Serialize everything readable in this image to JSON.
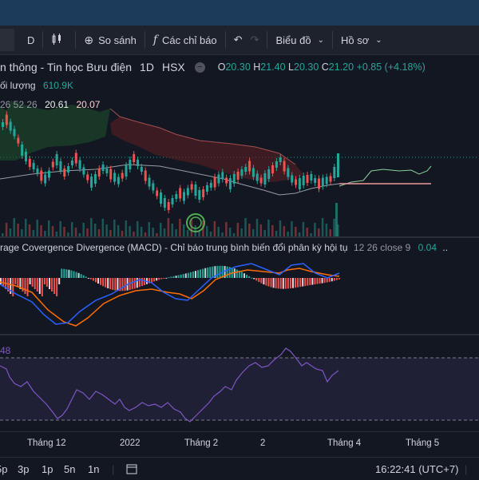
{
  "toolbar": {
    "interval": "D",
    "compare_label": "So sánh",
    "indicators_label": "Các chỉ báo",
    "chart_type_label": "Biểu đồ",
    "profile_label": "Hồ sơ"
  },
  "legend": {
    "symbol_name": "n thông - Tin học Bưu điện",
    "interval": "1D",
    "exchange": "HSX",
    "open_label": "O",
    "open": "20.30",
    "high_label": "H",
    "high": "21.40",
    "low_label": "L",
    "low": "20.30",
    "close_label": "C",
    "close": "21.20",
    "change": "+0.85 (+4.18%)"
  },
  "volume": {
    "label": "ối lượng",
    "value": "610.9K"
  },
  "ichimoku": {
    "params": "26 52 26",
    "v1": "20.61",
    "v2": "20.07"
  },
  "macd": {
    "title": "rage Covergence Divergence (MACD) - Chỉ báo trung bình biến đổi phân kỳ hội tụ",
    "params": "12 26 close 9",
    "value": "0.04",
    "more": ".."
  },
  "rsi": {
    "value": "48"
  },
  "time_axis": [
    "Tháng 12",
    "2022",
    "Tháng 2",
    "2",
    "Tháng 4",
    "Tháng 5"
  ],
  "bottom": {
    "ranges": [
      "5p",
      "3p",
      "1p",
      "5n",
      "1n"
    ],
    "clock": "16:22:41 (UTC+7)"
  },
  "colors": {
    "up": "#26a69a",
    "down": "#ef5350",
    "macd": "#2962ff",
    "signal": "#ff6d00",
    "rsi": "#7e57c2"
  }
}
